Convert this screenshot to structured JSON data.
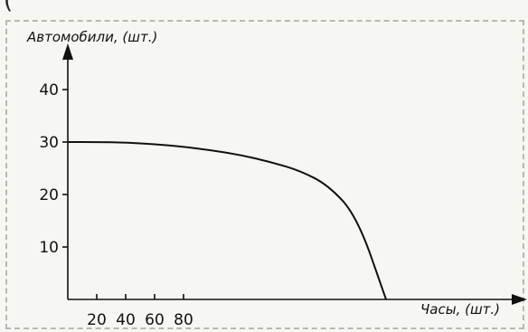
{
  "header_fragment": "(",
  "chart_data": {
    "type": "line",
    "title": "",
    "xlabel": "Часы, (шт.)",
    "ylabel": "Автомобили, (шт.)",
    "x_ticks": [
      20,
      40,
      60,
      80
    ],
    "y_ticks": [
      10,
      20,
      30,
      40
    ],
    "xlim": [
      0,
      230
    ],
    "ylim": [
      0,
      45
    ],
    "grid": false,
    "series": [
      {
        "x": [
          0,
          20,
          40,
          60,
          80,
          100,
          120,
          140,
          160,
          180,
          200,
          220
        ],
        "y": [
          30,
          30,
          29.9,
          29.6,
          29.1,
          28.4,
          27.5,
          26.2,
          24.6,
          21.8,
          15.8,
          0
        ]
      }
    ]
  }
}
